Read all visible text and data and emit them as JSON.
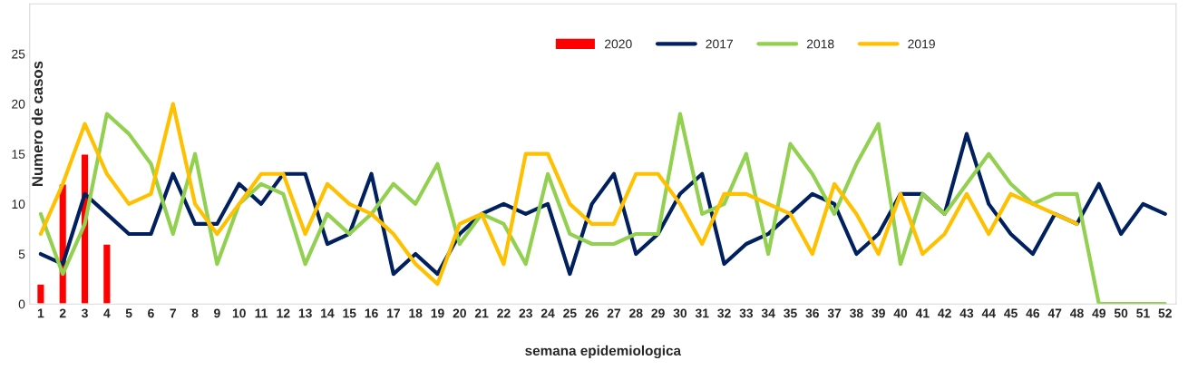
{
  "chart_data": {
    "type": "line",
    "xlabel": "semana epidemiologica",
    "ylabel": "Numero de casos",
    "categories": [
      "1",
      "2",
      "3",
      "4",
      "5",
      "6",
      "7",
      "8",
      "9",
      "10",
      "11",
      "12",
      "13",
      "14",
      "15",
      "16",
      "17",
      "18",
      "19",
      "20",
      "21",
      "22",
      "23",
      "24",
      "25",
      "26",
      "27",
      "28",
      "29",
      "30",
      "31",
      "32",
      "33",
      "34",
      "35",
      "36",
      "37",
      "38",
      "39",
      "40",
      "41",
      "42",
      "43",
      "44",
      "45",
      "46",
      "47",
      "48",
      "49",
      "50",
      "51",
      "52"
    ],
    "series": [
      {
        "name": "2020",
        "type": "bar",
        "color": "#ff0000",
        "values": [
          2,
          12,
          15,
          6,
          null,
          null,
          null,
          null,
          null,
          null,
          null,
          null,
          null,
          null,
          null,
          null,
          null,
          null,
          null,
          null,
          null,
          null,
          null,
          null,
          null,
          null,
          null,
          null,
          null,
          null,
          null,
          null,
          null,
          null,
          null,
          null,
          null,
          null,
          null,
          null,
          null,
          null,
          null,
          null,
          null,
          null,
          null,
          null,
          null,
          null,
          null,
          null
        ]
      },
      {
        "name": "2017",
        "color": "#002060",
        "values": [
          5,
          4,
          11,
          9,
          7,
          7,
          13,
          8,
          8,
          12,
          10,
          13,
          13,
          6,
          7,
          13,
          3,
          5,
          3,
          7,
          9,
          10,
          9,
          10,
          3,
          10,
          13,
          5,
          7,
          11,
          13,
          4,
          6,
          7,
          9,
          11,
          10,
          5,
          7,
          11,
          11,
          9,
          17,
          10,
          7,
          5,
          9,
          8,
          12,
          7,
          10,
          9
        ]
      },
      {
        "name": "2018",
        "color": "#92d050",
        "values": [
          9,
          3,
          8,
          19,
          17,
          14,
          7,
          15,
          4,
          10,
          12,
          11,
          4,
          9,
          7,
          9,
          12,
          10,
          14,
          6,
          9,
          8,
          4,
          13,
          7,
          6,
          6,
          7,
          7,
          19,
          9,
          10,
          15,
          5,
          16,
          13,
          9,
          14,
          18,
          4,
          11,
          9,
          12,
          15,
          12,
          10,
          11,
          11,
          0,
          0,
          0,
          0
        ]
      },
      {
        "name": "2019",
        "color": "#ffc000",
        "values": [
          7,
          12,
          18,
          13,
          10,
          11,
          20,
          10,
          7,
          10,
          13,
          13,
          7,
          12,
          10,
          9,
          7,
          4,
          2,
          8,
          9,
          4,
          15,
          15,
          10,
          8,
          8,
          13,
          13,
          10,
          6,
          11,
          11,
          10,
          9,
          5,
          12,
          9,
          5,
          11,
          5,
          7,
          11,
          7,
          11,
          10,
          9,
          8,
          null,
          null,
          null,
          null
        ]
      }
    ],
    "ylim": [
      0,
      30
    ],
    "yticks": [
      0,
      5,
      10,
      15,
      20,
      25
    ],
    "grid": false,
    "legend": "top right",
    "marker": "none"
  }
}
